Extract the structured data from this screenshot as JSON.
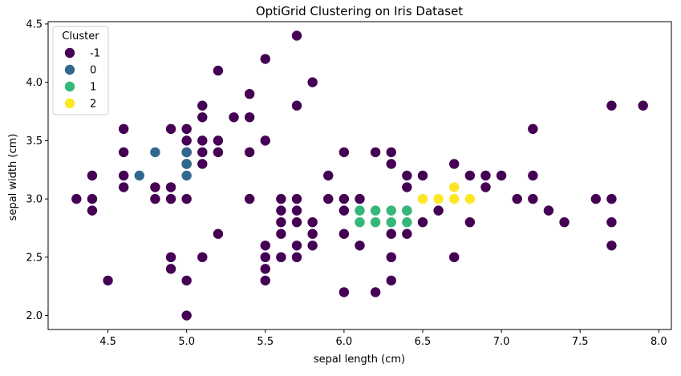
{
  "chart_data": {
    "type": "scatter",
    "title": "OptiGrid Clustering on Iris Dataset",
    "xlabel": "sepal length (cm)",
    "ylabel": "sepal width (cm)",
    "xlim": [
      4.12,
      8.08
    ],
    "ylim": [
      1.88,
      4.52
    ],
    "xticks": [
      4.5,
      5.0,
      5.5,
      6.0,
      6.5,
      7.0,
      7.5,
      8.0
    ],
    "xtick_labels": [
      "4.5",
      "5.0",
      "5.5",
      "6.0",
      "6.5",
      "7.0",
      "7.5",
      "8.0"
    ],
    "yticks": [
      2.0,
      2.5,
      3.0,
      3.5,
      4.0,
      4.5
    ],
    "ytick_labels": [
      "2.0",
      "2.5",
      "3.0",
      "3.5",
      "4.0",
      "4.5"
    ],
    "grid": false,
    "legend": {
      "title": "Cluster",
      "position": "top-left",
      "entries": [
        "-1",
        "0",
        "1",
        "2"
      ]
    },
    "series": [
      {
        "name": "-1",
        "color": "#440154",
        "points": [
          [
            5.7,
            4.4
          ],
          [
            5.5,
            4.2
          ],
          [
            5.2,
            4.1
          ],
          [
            5.8,
            4.0
          ],
          [
            5.4,
            3.9
          ],
          [
            5.1,
            3.8
          ],
          [
            5.7,
            3.8
          ],
          [
            7.7,
            3.8
          ],
          [
            7.9,
            3.8
          ],
          [
            5.1,
            3.7
          ],
          [
            5.3,
            3.7
          ],
          [
            5.4,
            3.7
          ],
          [
            4.6,
            3.6
          ],
          [
            4.9,
            3.6
          ],
          [
            5.0,
            3.6
          ],
          [
            7.2,
            3.6
          ],
          [
            5.0,
            3.5
          ],
          [
            5.1,
            3.5
          ],
          [
            5.2,
            3.5
          ],
          [
            5.5,
            3.5
          ],
          [
            4.6,
            3.4
          ],
          [
            5.0,
            3.4
          ],
          [
            5.1,
            3.4
          ],
          [
            5.2,
            3.4
          ],
          [
            5.4,
            3.4
          ],
          [
            6.0,
            3.4
          ],
          [
            6.2,
            3.4
          ],
          [
            6.3,
            3.4
          ],
          [
            5.0,
            3.3
          ],
          [
            5.1,
            3.3
          ],
          [
            6.3,
            3.3
          ],
          [
            6.7,
            3.3
          ],
          [
            4.4,
            3.2
          ],
          [
            4.6,
            3.2
          ],
          [
            5.9,
            3.2
          ],
          [
            6.4,
            3.2
          ],
          [
            6.5,
            3.2
          ],
          [
            6.8,
            3.2
          ],
          [
            6.9,
            3.2
          ],
          [
            7.0,
            3.2
          ],
          [
            7.2,
            3.2
          ],
          [
            4.6,
            3.1
          ],
          [
            4.8,
            3.1
          ],
          [
            4.9,
            3.1
          ],
          [
            6.4,
            3.1
          ],
          [
            6.9,
            3.1
          ],
          [
            4.3,
            3.0
          ],
          [
            4.4,
            3.0
          ],
          [
            4.8,
            3.0
          ],
          [
            4.9,
            3.0
          ],
          [
            5.0,
            3.0
          ],
          [
            5.4,
            3.0
          ],
          [
            5.6,
            3.0
          ],
          [
            5.7,
            3.0
          ],
          [
            5.9,
            3.0
          ],
          [
            6.0,
            3.0
          ],
          [
            6.1,
            3.0
          ],
          [
            7.1,
            3.0
          ],
          [
            7.2,
            3.0
          ],
          [
            7.6,
            3.0
          ],
          [
            7.7,
            3.0
          ],
          [
            4.4,
            2.9
          ],
          [
            5.6,
            2.9
          ],
          [
            5.7,
            2.9
          ],
          [
            6.0,
            2.9
          ],
          [
            6.4,
            2.9
          ],
          [
            6.6,
            2.9
          ],
          [
            7.3,
            2.9
          ],
          [
            5.6,
            2.8
          ],
          [
            5.7,
            2.8
          ],
          [
            5.8,
            2.8
          ],
          [
            6.5,
            2.8
          ],
          [
            6.8,
            2.8
          ],
          [
            7.4,
            2.8
          ],
          [
            7.7,
            2.8
          ],
          [
            5.2,
            2.7
          ],
          [
            5.6,
            2.7
          ],
          [
            5.8,
            2.7
          ],
          [
            6.0,
            2.7
          ],
          [
            6.3,
            2.7
          ],
          [
            6.4,
            2.7
          ],
          [
            5.5,
            2.6
          ],
          [
            5.7,
            2.6
          ],
          [
            5.8,
            2.6
          ],
          [
            6.1,
            2.6
          ],
          [
            7.7,
            2.6
          ],
          [
            4.9,
            2.5
          ],
          [
            5.1,
            2.5
          ],
          [
            5.5,
            2.5
          ],
          [
            5.6,
            2.5
          ],
          [
            5.7,
            2.5
          ],
          [
            6.3,
            2.5
          ],
          [
            6.7,
            2.5
          ],
          [
            4.9,
            2.4
          ],
          [
            5.5,
            2.4
          ],
          [
            4.5,
            2.3
          ],
          [
            5.0,
            2.3
          ],
          [
            5.5,
            2.3
          ],
          [
            6.3,
            2.3
          ],
          [
            6.0,
            2.2
          ],
          [
            6.2,
            2.2
          ],
          [
            5.0,
            2.0
          ]
        ]
      },
      {
        "name": "0",
        "color": "#31688e",
        "points": [
          [
            4.8,
            3.4
          ],
          [
            5.0,
            3.4
          ],
          [
            5.0,
            3.3
          ],
          [
            4.7,
            3.2
          ],
          [
            5.0,
            3.2
          ]
        ]
      },
      {
        "name": "1",
        "color": "#35b779",
        "points": [
          [
            6.1,
            2.9
          ],
          [
            6.2,
            2.9
          ],
          [
            6.3,
            2.9
          ],
          [
            6.4,
            2.9
          ],
          [
            6.1,
            2.8
          ],
          [
            6.2,
            2.8
          ],
          [
            6.3,
            2.8
          ],
          [
            6.4,
            2.8
          ]
        ]
      },
      {
        "name": "2",
        "color": "#fde725",
        "points": [
          [
            6.7,
            3.1
          ],
          [
            6.5,
            3.0
          ],
          [
            6.6,
            3.0
          ],
          [
            6.7,
            3.0
          ],
          [
            6.8,
            3.0
          ]
        ]
      }
    ]
  }
}
